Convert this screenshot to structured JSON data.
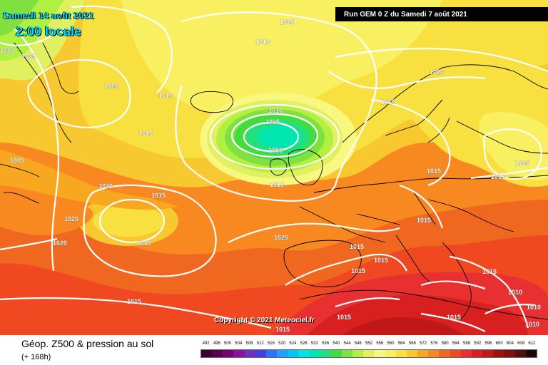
{
  "header": {
    "date": "Samedi 14 août 2021",
    "time": "2:00 locale",
    "run": "Run GEM 0 Z du Samedi 7 août 2021"
  },
  "copyright": "Copyright © 2021 Meteociel.fr",
  "footer": {
    "title": "Géop. Z500 & pression au sol",
    "subtitle": "(+ 168h)"
  },
  "scale": {
    "values": [
      "492",
      "496",
      "500",
      "504",
      "508",
      "512",
      "516",
      "520",
      "524",
      "528",
      "532",
      "536",
      "540",
      "544",
      "548",
      "552",
      "556",
      "560",
      "564",
      "568",
      "572",
      "576",
      "580",
      "584",
      "588",
      "592",
      "596",
      "600",
      "604",
      "608",
      "612"
    ],
    "colors": [
      "#3a0030",
      "#5a0050",
      "#780070",
      "#8a10a0",
      "#7030c0",
      "#4040e0",
      "#3070ff",
      "#20a0ff",
      "#00c8ff",
      "#00e6e6",
      "#00e6b0",
      "#20e080",
      "#40dc40",
      "#80e040",
      "#b0f040",
      "#e0f060",
      "#f8f880",
      "#f8f060",
      "#f8e040",
      "#f8c830",
      "#f8a820",
      "#f88820",
      "#f06820",
      "#f04820",
      "#e83030",
      "#d82020",
      "#c01818",
      "#a01010",
      "#801010",
      "#501010",
      "#200808"
    ]
  },
  "isobar_labels": [
    "1005",
    "1010",
    "1000",
    "1005",
    "1020",
    "1015",
    "1010",
    "1005",
    "1000",
    "1015",
    "1005",
    "1020",
    "1015",
    "1020",
    "1015",
    "1020",
    "1010",
    "1015",
    "1020",
    "1015",
    "1015",
    "1015",
    "1015",
    "1015",
    "1015",
    "1010",
    "1005",
    "1015",
    "1015",
    "1010",
    "1010",
    "1010",
    "1020",
    "1015",
    "1015"
  ],
  "map_colors": {
    "z_584": "#f04820",
    "z_580": "#f06820",
    "z_576": "#f88820",
    "z_572": "#f8a820",
    "z_568": "#f8c830",
    "z_564": "#f8e040",
    "z_560": "#f8f060",
    "z_556": "#f8f880",
    "z_552": "#e0f060",
    "z_548": "#b0f040",
    "z_544": "#80e040",
    "z_540": "#40dc40",
    "z_536": "#20e080",
    "z_532": "#00e6b0",
    "z_588": "#e83030",
    "z_592": "#d82020",
    "z_596": "#c01818"
  }
}
